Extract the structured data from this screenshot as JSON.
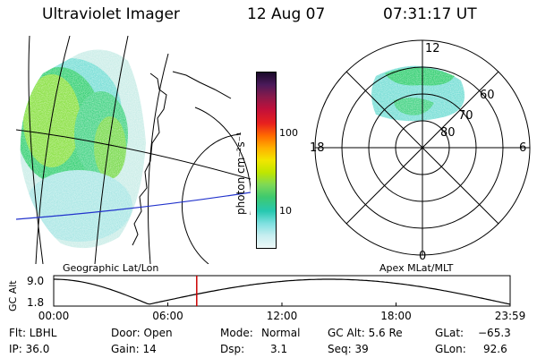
{
  "header": {
    "instrument": "Ultraviolet Imager",
    "date": "12 Aug 07",
    "time": "07:31:17 UT"
  },
  "colorbar": {
    "unit_label": "photon cm⁻²s⁻¹",
    "ticks": [
      "100",
      "10"
    ],
    "colors": [
      "#1a0a2a",
      "#4b1a5a",
      "#8a1a4a",
      "#c2103a",
      "#e8201e",
      "#ff6a00",
      "#ffb000",
      "#f2e600",
      "#bfe600",
      "#7ed957",
      "#3ec96e",
      "#27c8b0",
      "#7ee0e0",
      "#c7eef0",
      "#eef8f8"
    ]
  },
  "left_map": {
    "label": "Geographic Lat/Lon"
  },
  "polar_plot": {
    "label": "Apex MLat/MLT",
    "ring_labels": [
      "60",
      "70",
      "80"
    ],
    "mlt_labels": {
      "top": "12",
      "left": "18",
      "right": "6",
      "bottom": "0"
    }
  },
  "altitude_plot": {
    "ylabel": "GC Alt",
    "yticks": [
      "9.0",
      "1.8"
    ],
    "xticks": [
      "00:00",
      "06:00",
      "12:00",
      "18:00",
      "23:59"
    ],
    "current_time_marker_hours": 7.52,
    "marker_color": "#cc0000"
  },
  "status": {
    "flt": "Flt: LBHL",
    "door": "Door: Open",
    "mode_label": "Mode:",
    "mode_value": "Normal",
    "gc_alt": "GC Alt: 5.6 Re",
    "glat_label": "GLat:",
    "glat_value": "−65.3",
    "ip": "IP: 36.0",
    "gain": "Gain: 14",
    "dsp_label": "Dsp:",
    "dsp_value": "3.1",
    "seq": "Seq: 39",
    "glon_label": "GLon:",
    "glon_value": "92.6"
  }
}
